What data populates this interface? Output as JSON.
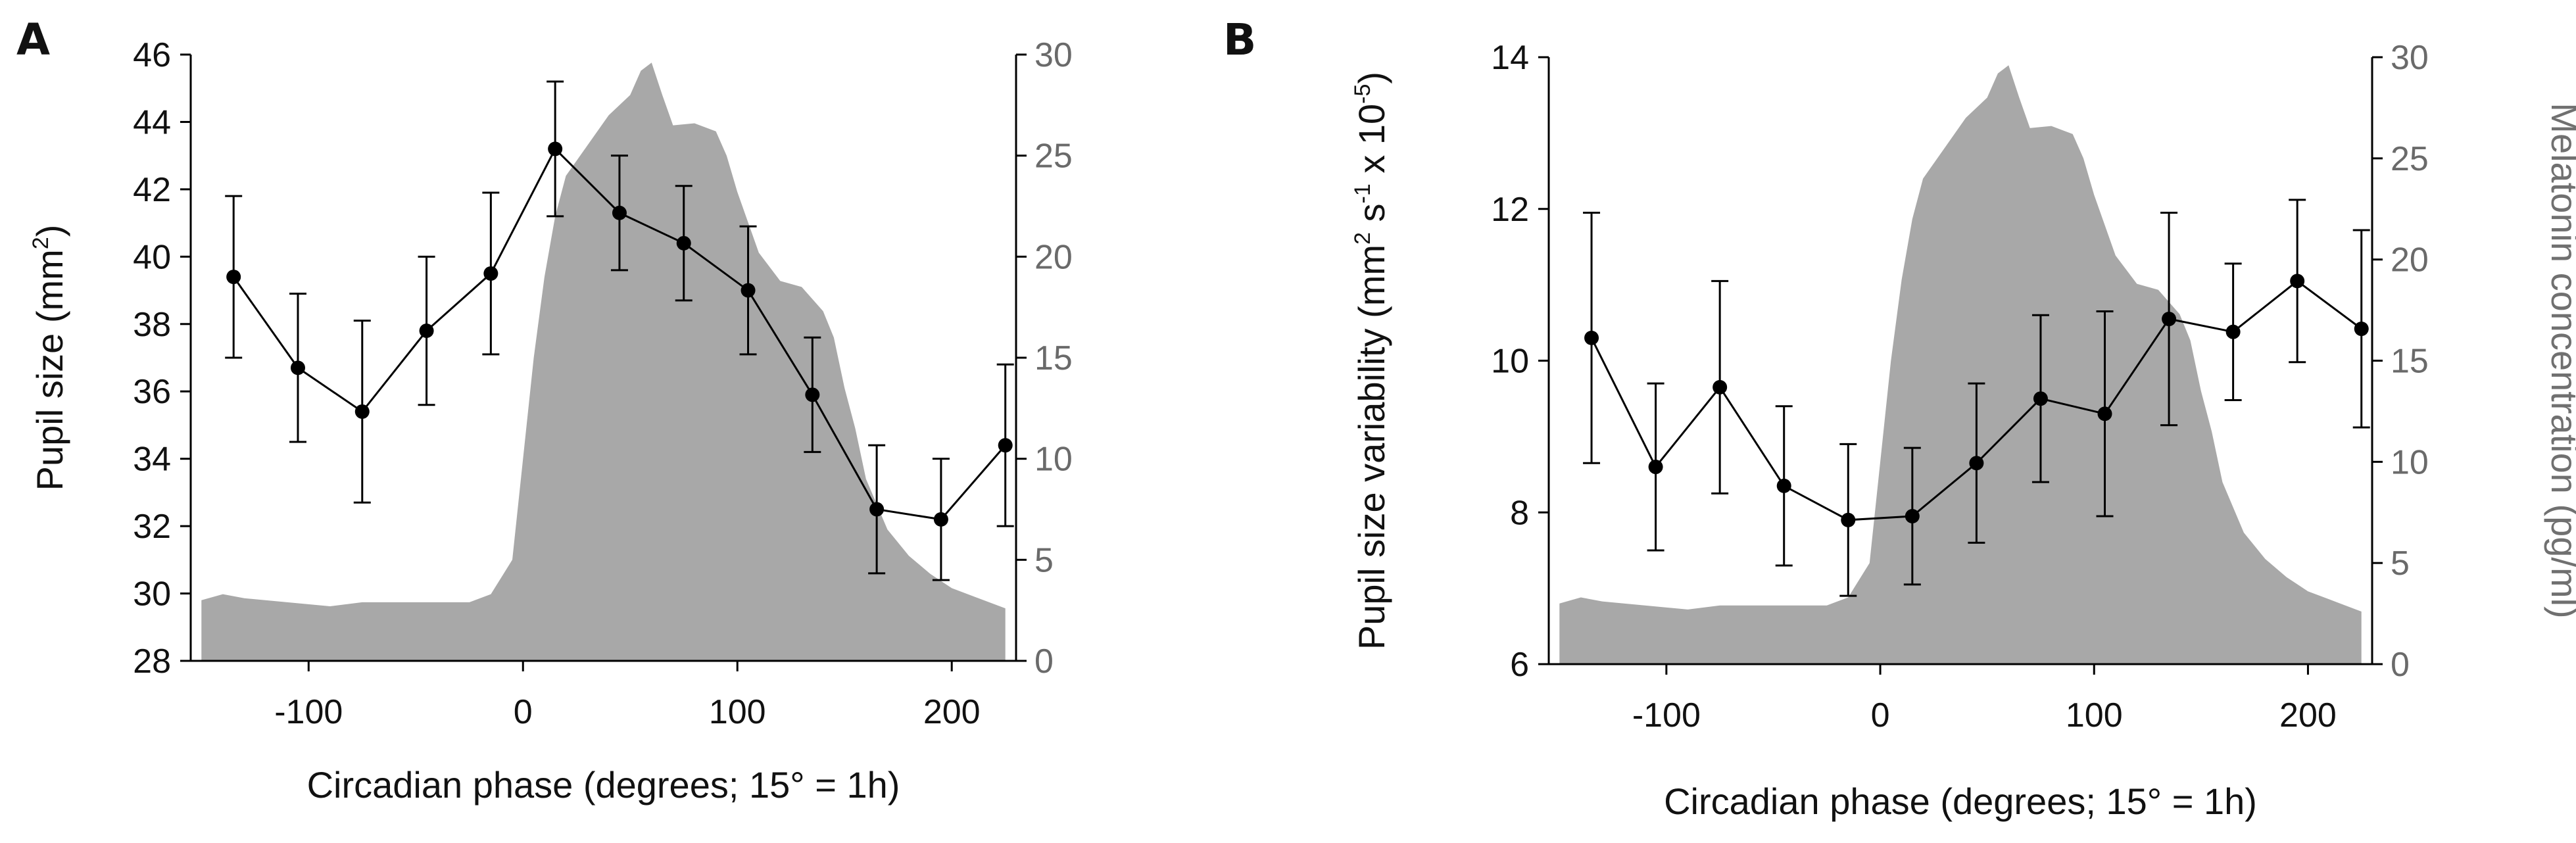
{
  "chart_data": [
    {
      "type": "line",
      "panel_label": "A",
      "xlabel": "Circadian phase (degrees; 15° = 1h)",
      "ylabel_parts": [
        "Pupil size (mm",
        "2",
        ")"
      ],
      "y2label": "",
      "xlim": [
        -155,
        230
      ],
      "x_ticks": [
        -100,
        0,
        100,
        200
      ],
      "x_tick_labels": [
        "-100",
        "0",
        "100",
        "200"
      ],
      "ylim": [
        28,
        46
      ],
      "y_ticks": [
        28,
        30,
        32,
        34,
        36,
        38,
        40,
        42,
        44,
        46
      ],
      "y_tick_labels": [
        "28",
        "30",
        "32",
        "34",
        "36",
        "38",
        "40",
        "42",
        "44",
        "46"
      ],
      "y2lim": [
        0,
        30
      ],
      "y2_ticks": [
        0,
        5,
        10,
        15,
        20,
        25,
        30
      ],
      "y2_tick_labels": [
        "0",
        "5",
        "10",
        "15",
        "20",
        "25",
        "30"
      ],
      "melatonin_area": {
        "name": "Melatonin concentration",
        "color": "#a8a8a8",
        "x": [
          -150,
          -140,
          -130,
          -110,
          -90,
          -75,
          -60,
          -40,
          -25,
          -15,
          -5,
          0,
          5,
          10,
          15,
          20,
          30,
          40,
          50,
          55,
          60,
          65,
          70,
          80,
          90,
          95,
          100,
          110,
          120,
          130,
          140,
          145,
          150,
          155,
          160,
          170,
          180,
          190,
          200,
          210,
          225
        ],
        "y": [
          3,
          3.3,
          3.1,
          2.9,
          2.7,
          2.9,
          2.9,
          2.9,
          2.9,
          3.3,
          5,
          10,
          15,
          19,
          22,
          24,
          25.5,
          27,
          28,
          29.2,
          29.6,
          28,
          26.5,
          26.6,
          26.2,
          25,
          23.2,
          20.2,
          18.8,
          18.5,
          17.3,
          16,
          13.5,
          11.5,
          9,
          6.5,
          5.2,
          4.3,
          3.6,
          3.2,
          2.6
        ]
      },
      "series": [
        {
          "name": "Pupil size",
          "color": "#000000",
          "x": [
            -135,
            -105,
            -75,
            -45,
            -15,
            15,
            45,
            75,
            105,
            135,
            165,
            195,
            225
          ],
          "y": [
            39.4,
            36.7,
            35.4,
            37.8,
            39.5,
            43.2,
            41.3,
            40.4,
            39.0,
            35.9,
            32.5,
            32.2,
            34.4
          ],
          "err": [
            2.4,
            2.2,
            2.7,
            2.2,
            2.4,
            2.0,
            1.7,
            1.7,
            1.9,
            1.7,
            1.9,
            1.8,
            2.4
          ]
        }
      ]
    },
    {
      "type": "line",
      "panel_label": "B",
      "xlabel": "Circadian phase (degrees; 15° = 1h)",
      "ylabel_parts": [
        "Pupil size variability  (mm",
        "2",
        " s",
        "-1",
        " x 10",
        "-5",
        ")"
      ],
      "y2label": "Melatonin concentration (pg/ml)",
      "xlim": [
        -155,
        230
      ],
      "x_ticks": [
        -100,
        0,
        100,
        200
      ],
      "x_tick_labels": [
        "-100",
        "0",
        "100",
        "200"
      ],
      "ylim": [
        6,
        14
      ],
      "y_ticks": [
        6,
        8,
        10,
        12,
        14
      ],
      "y_tick_labels": [
        "6",
        "8",
        "10",
        "12",
        "14"
      ],
      "y2lim": [
        0,
        30
      ],
      "y2_ticks": [
        0,
        5,
        10,
        15,
        20,
        25,
        30
      ],
      "y2_tick_labels": [
        "0",
        "5",
        "10",
        "15",
        "20",
        "25",
        "30"
      ],
      "melatonin_area": {
        "name": "Melatonin concentration",
        "color": "#a8a8a8",
        "x": [
          -150,
          -140,
          -130,
          -110,
          -90,
          -75,
          -60,
          -40,
          -25,
          -15,
          -5,
          0,
          5,
          10,
          15,
          20,
          30,
          40,
          50,
          55,
          60,
          65,
          70,
          80,
          90,
          95,
          100,
          110,
          120,
          130,
          140,
          145,
          150,
          155,
          160,
          170,
          180,
          190,
          200,
          210,
          225
        ],
        "y": [
          3,
          3.3,
          3.1,
          2.9,
          2.7,
          2.9,
          2.9,
          2.9,
          2.9,
          3.3,
          5,
          10,
          15,
          19,
          22,
          24,
          25.5,
          27,
          28,
          29.2,
          29.6,
          28,
          26.5,
          26.6,
          26.2,
          25,
          23.2,
          20.2,
          18.8,
          18.5,
          17.3,
          16,
          13.5,
          11.5,
          9,
          6.5,
          5.2,
          4.3,
          3.6,
          3.2,
          2.6
        ]
      },
      "series": [
        {
          "name": "Pupil size variability",
          "color": "#000000",
          "x": [
            -135,
            -105,
            -75,
            -45,
            -15,
            15,
            45,
            75,
            105,
            135,
            165,
            195,
            225
          ],
          "y": [
            10.3,
            8.6,
            9.65,
            8.35,
            7.9,
            7.95,
            8.65,
            9.5,
            9.3,
            10.55,
            10.38,
            11.05,
            10.42
          ],
          "err": [
            1.65,
            1.1,
            1.4,
            1.05,
            1.0,
            0.9,
            1.05,
            1.1,
            1.35,
            1.4,
            0.9,
            1.07,
            1.3
          ]
        }
      ]
    }
  ]
}
